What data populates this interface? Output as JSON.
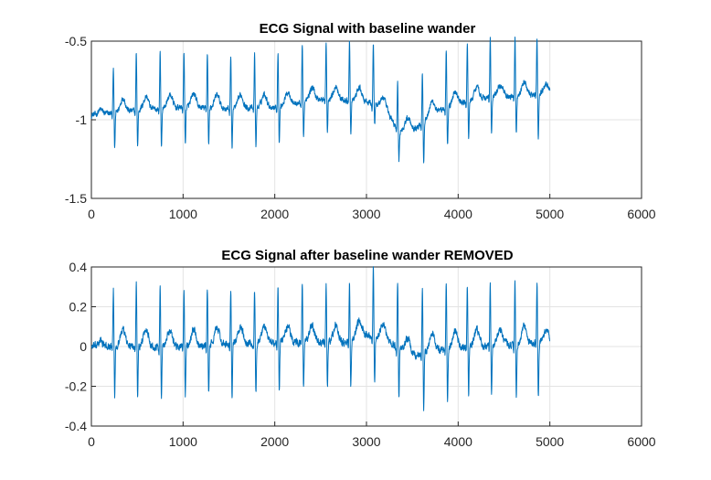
{
  "chart_data": [
    {
      "type": "line",
      "title": "ECG Signal with baseline wander",
      "xlabel": "",
      "ylabel": "",
      "xlim": [
        0,
        6000
      ],
      "ylim": [
        -1.5,
        -0.5
      ],
      "xticks": [
        0,
        1000,
        2000,
        3000,
        4000,
        5000,
        6000
      ],
      "xtick_labels": [
        "0",
        "1000",
        "2000",
        "3000",
        "4000",
        "5000",
        "6000"
      ],
      "yticks": [
        -1.5,
        -1,
        -0.5
      ],
      "ytick_labels": [
        "-1.5",
        "-1",
        "-0.5"
      ],
      "grid": true,
      "color": "#0072BD",
      "signal": {
        "x_range": [
          0,
          5000
        ],
        "r_peaks": [
          240,
          490,
          750,
          1010,
          1265,
          1520,
          1780,
          2035,
          2300,
          2560,
          2815,
          3075,
          3340,
          3610,
          3870,
          4100,
          4350,
          4620,
          4860
        ],
        "r_amplitude": [
          0.3,
          0.37,
          0.37,
          0.36,
          0.36,
          0.35,
          0.34,
          0.35,
          0.36,
          0.36,
          0.38,
          0.38,
          0.3,
          0.32,
          0.38,
          0.37,
          0.38,
          0.38,
          0.36
        ],
        "s_amplitude": [
          -0.24,
          -0.24,
          -0.26,
          -0.24,
          -0.24,
          -0.26,
          -0.25,
          -0.24,
          -0.22,
          -0.22,
          -0.22,
          -0.14,
          -0.18,
          -0.26,
          -0.24,
          -0.24,
          -0.24,
          -0.24,
          -0.28
        ],
        "baseline": [
          [
            0,
            -0.97
          ],
          [
            500,
            -0.94
          ],
          [
            1000,
            -0.92
          ],
          [
            1500,
            -0.93
          ],
          [
            2000,
            -0.92
          ],
          [
            2500,
            -0.87
          ],
          [
            2900,
            -0.88
          ],
          [
            3100,
            -0.9
          ],
          [
            3250,
            -0.97
          ],
          [
            3350,
            -1.08
          ],
          [
            3550,
            -1.05
          ],
          [
            3700,
            -0.97
          ],
          [
            4000,
            -0.9
          ],
          [
            4300,
            -0.86
          ],
          [
            4700,
            -0.85
          ],
          [
            5000,
            -0.83
          ]
        ],
        "noise": 0.015
      }
    },
    {
      "type": "line",
      "title": "ECG Signal after baseline wander REMOVED",
      "xlabel": "",
      "ylabel": "",
      "xlim": [
        0,
        6000
      ],
      "ylim": [
        -0.4,
        0.4
      ],
      "xticks": [
        0,
        1000,
        2000,
        3000,
        4000,
        5000,
        6000
      ],
      "xtick_labels": [
        "0",
        "1000",
        "2000",
        "3000",
        "4000",
        "5000",
        "6000"
      ],
      "yticks": [
        -0.4,
        -0.2,
        0,
        0.2,
        0.4
      ],
      "ytick_labels": [
        "-0.4",
        "-0.2",
        "0",
        "0.2",
        "0.4"
      ],
      "grid": true,
      "color": "#0072BD",
      "signal": {
        "x_range": [
          0,
          5000
        ],
        "r_peaks": [
          240,
          490,
          750,
          1010,
          1265,
          1520,
          1780,
          2035,
          2300,
          2560,
          2815,
          3075,
          3340,
          3610,
          3870,
          4100,
          4350,
          4620,
          4860
        ],
        "r_amplitude": [
          0.29,
          0.32,
          0.3,
          0.28,
          0.29,
          0.28,
          0.27,
          0.28,
          0.29,
          0.29,
          0.3,
          0.36,
          0.33,
          0.33,
          0.33,
          0.31,
          0.31,
          0.31,
          0.31
        ],
        "s_amplitude": [
          -0.25,
          -0.25,
          -0.26,
          -0.25,
          -0.25,
          -0.27,
          -0.26,
          -0.25,
          -0.24,
          -0.24,
          -0.24,
          -0.23,
          -0.25,
          -0.29,
          -0.26,
          -0.25,
          -0.26,
          -0.26,
          -0.28
        ],
        "baseline": [
          [
            0,
            0.0
          ],
          [
            1000,
            0.0
          ],
          [
            2000,
            0.02
          ],
          [
            2800,
            0.02
          ],
          [
            3000,
            0.06
          ],
          [
            3250,
            0.02
          ],
          [
            3500,
            -0.05
          ],
          [
            3750,
            -0.02
          ],
          [
            4200,
            0.0
          ],
          [
            5000,
            0.02
          ]
        ],
        "noise": 0.015
      }
    }
  ]
}
